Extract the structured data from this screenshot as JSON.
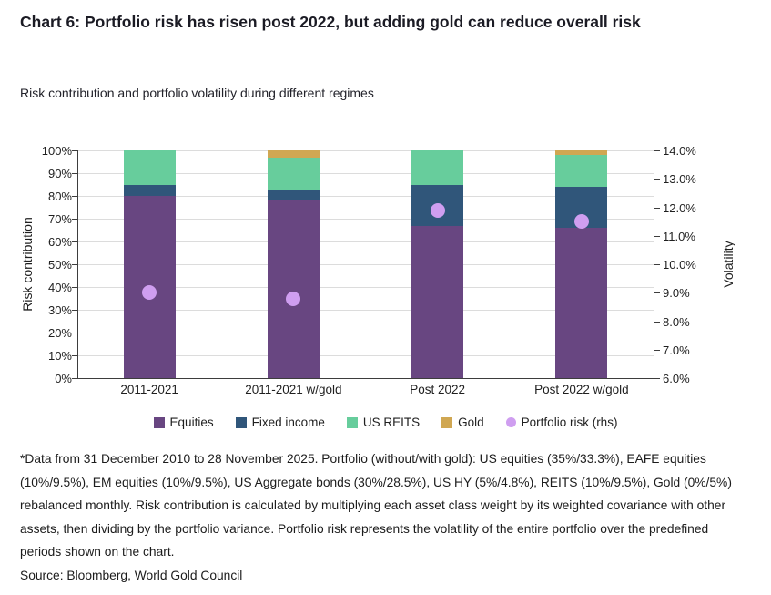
{
  "header": {
    "title": "Chart 6: Portfolio risk has risen post 2022, but adding gold can reduce overall risk",
    "subtitle": "Risk contribution and portfolio volatility during different regimes"
  },
  "chart_data": {
    "type": "bar",
    "stacked": true,
    "categories": [
      "2011-2021",
      "2011-2021 w/gold",
      "Post 2022",
      "Post 2022 w/gold"
    ],
    "series": [
      {
        "name": "Equities",
        "color": "#684681",
        "values": [
          80,
          78,
          67,
          66
        ]
      },
      {
        "name": "Fixed income",
        "color": "#30567a",
        "values": [
          5,
          5,
          18,
          18
        ]
      },
      {
        "name": "US REITS",
        "color": "#67cd9c",
        "values": [
          15,
          14,
          15,
          14
        ]
      },
      {
        "name": "Gold",
        "color": "#d0a752",
        "values": [
          0,
          3,
          0,
          2
        ]
      }
    ],
    "secondary_series": {
      "name": "Portfolio risk (rhs)",
      "type": "scatter",
      "color": "#cf9ef0",
      "values": [
        9.0,
        8.8,
        11.9,
        11.5
      ]
    },
    "ylabel_left": "Risk contribution",
    "ylabel_right": "Volatility",
    "y_left": {
      "min": 0,
      "max": 100,
      "step": 10
    },
    "y_right": {
      "min": 6,
      "max": 14,
      "step": 1
    },
    "left_tick_labels": [
      "100%",
      "90%",
      "80%",
      "70%",
      "60%",
      "50%",
      "40%",
      "30%",
      "20%",
      "10%",
      "0%"
    ],
    "right_tick_labels": [
      "14.0%",
      "13.0%",
      "12.0%",
      "11.0%",
      "10.0%",
      "9.0%",
      "8.0%",
      "7.0%",
      "6.0%"
    ],
    "grid": true,
    "legend_position": "bottom"
  },
  "notes": {
    "footnote": "*Data from 31 December 2010 to 28 November 2025. Portfolio (without/with gold): US equities (35%/33.3%), EAFE equities (10%/9.5%), EM equities (10%/9.5%), US Aggregate bonds (30%/28.5%), US HY (5%/4.8%), REITS (10%/9.5%), Gold (0%/5%) rebalanced monthly. Risk contribution is calculated by multiplying each asset class weight by its weighted covariance with other assets, then dividing by the portfolio variance. Portfolio risk represents the volatility of the entire portfolio over the predefined periods shown on the chart.",
    "source": "Source: Bloomberg, World Gold Council"
  }
}
